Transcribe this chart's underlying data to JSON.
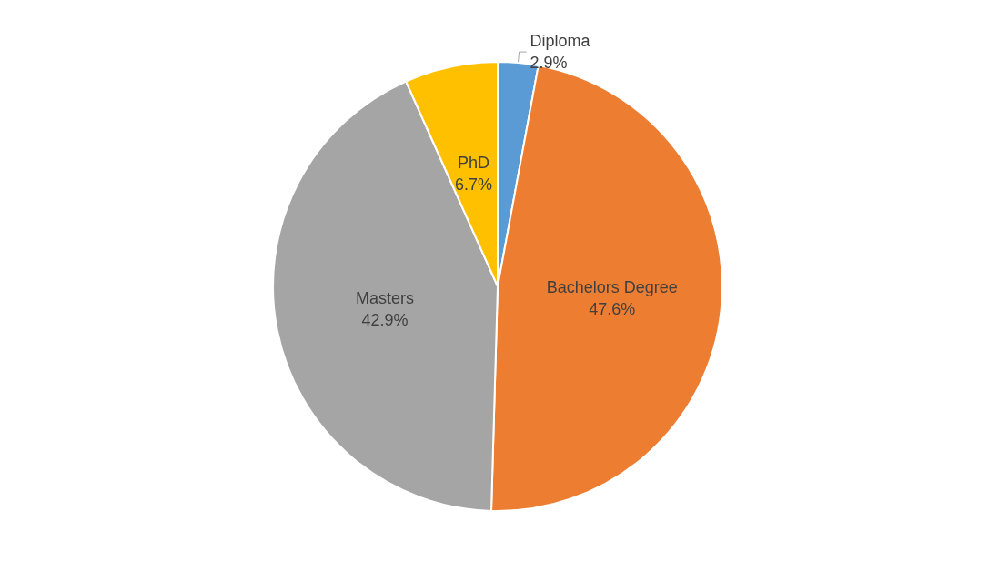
{
  "chart_data": {
    "type": "pie",
    "categories": [
      "Diploma",
      "Bachelors Degree",
      "Masters",
      "PhD"
    ],
    "values": [
      2.9,
      47.6,
      42.9,
      6.7
    ],
    "colors": [
      "#5b9bd5",
      "#ed7d31",
      "#a5a5a5",
      "#ffc000"
    ],
    "value_labels": [
      "2.9%",
      "47.6%",
      "42.9%",
      "6.7%"
    ],
    "legend": false
  }
}
